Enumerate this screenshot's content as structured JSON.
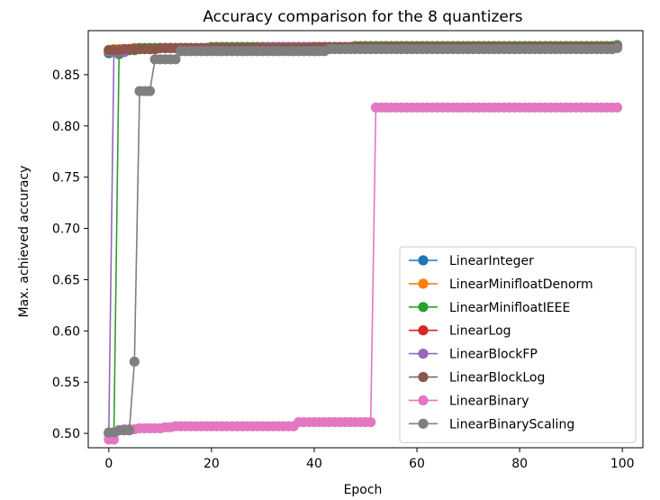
{
  "chart_data": {
    "type": "line",
    "title": "Accuracy comparison for the 8 quantizers",
    "xlabel": "Epoch",
    "ylabel": "Max. achieved accuracy",
    "xlim": [
      -4,
      104
    ],
    "ylim": [
      0.486,
      0.893
    ],
    "xticks": [
      0,
      20,
      40,
      60,
      80,
      100
    ],
    "yticks": [
      0.5,
      0.55,
      0.6,
      0.65,
      0.7,
      0.75,
      0.8,
      0.85
    ],
    "grid": false,
    "legend_position": "lower-right",
    "marker": "circle",
    "series": [
      {
        "name": "LinearInteger",
        "color": "#1f77b4",
        "segments": [
          [
            0,
            0.871
          ],
          [
            1,
            0.874
          ],
          [
            5,
            0.876
          ],
          [
            20,
            0.877
          ],
          [
            99,
            0.878
          ]
        ]
      },
      {
        "name": "LinearMinifloatDenorm",
        "color": "#ff7f0e",
        "segments": [
          [
            0,
            0.873
          ],
          [
            1,
            0.875
          ],
          [
            5,
            0.876
          ],
          [
            20,
            0.877
          ],
          [
            99,
            0.878
          ]
        ]
      },
      {
        "name": "LinearMinifloatIEEE",
        "color": "#2ca02c",
        "segments": [
          [
            0,
            0.5
          ],
          [
            1,
            0.5
          ],
          [
            2,
            0.87
          ],
          [
            3,
            0.874
          ],
          [
            6,
            0.876
          ],
          [
            20,
            0.877
          ],
          [
            48,
            0.878
          ],
          [
            99,
            0.879
          ]
        ]
      },
      {
        "name": "LinearLog",
        "color": "#d62728",
        "segments": [
          [
            0,
            0.874
          ],
          [
            3,
            0.875
          ],
          [
            10,
            0.876
          ],
          [
            30,
            0.877
          ],
          [
            99,
            0.877
          ]
        ]
      },
      {
        "name": "LinearBlockFP",
        "color": "#9467bd",
        "segments": [
          [
            0,
            0.5
          ],
          [
            1,
            0.872
          ],
          [
            4,
            0.875
          ],
          [
            10,
            0.876
          ],
          [
            30,
            0.877
          ],
          [
            99,
            0.878
          ]
        ]
      },
      {
        "name": "LinearBlockLog",
        "color": "#8c564b",
        "segments": [
          [
            0,
            0.874
          ],
          [
            3,
            0.875
          ],
          [
            10,
            0.876
          ],
          [
            40,
            0.877
          ],
          [
            99,
            0.877
          ]
        ]
      },
      {
        "name": "LinearBinary",
        "color": "#e377c2",
        "segments": [
          [
            0,
            0.494
          ],
          [
            1,
            0.494
          ],
          [
            2,
            0.503
          ],
          [
            3,
            0.504
          ],
          [
            6,
            0.505
          ],
          [
            11,
            0.506
          ],
          [
            13,
            0.507
          ],
          [
            37,
            0.511
          ],
          [
            51,
            0.511
          ],
          [
            52,
            0.818
          ],
          [
            99,
            0.818
          ]
        ]
      },
      {
        "name": "LinearBinaryScaling",
        "color": "#7f7f7f",
        "segments": [
          [
            0,
            0.501
          ],
          [
            2,
            0.503
          ],
          [
            4,
            0.503
          ],
          [
            5,
            0.57
          ],
          [
            6,
            0.834
          ],
          [
            8,
            0.834
          ],
          [
            9,
            0.865
          ],
          [
            13,
            0.865
          ],
          [
            14,
            0.873
          ],
          [
            43,
            0.875
          ],
          [
            99,
            0.876
          ]
        ]
      }
    ]
  }
}
